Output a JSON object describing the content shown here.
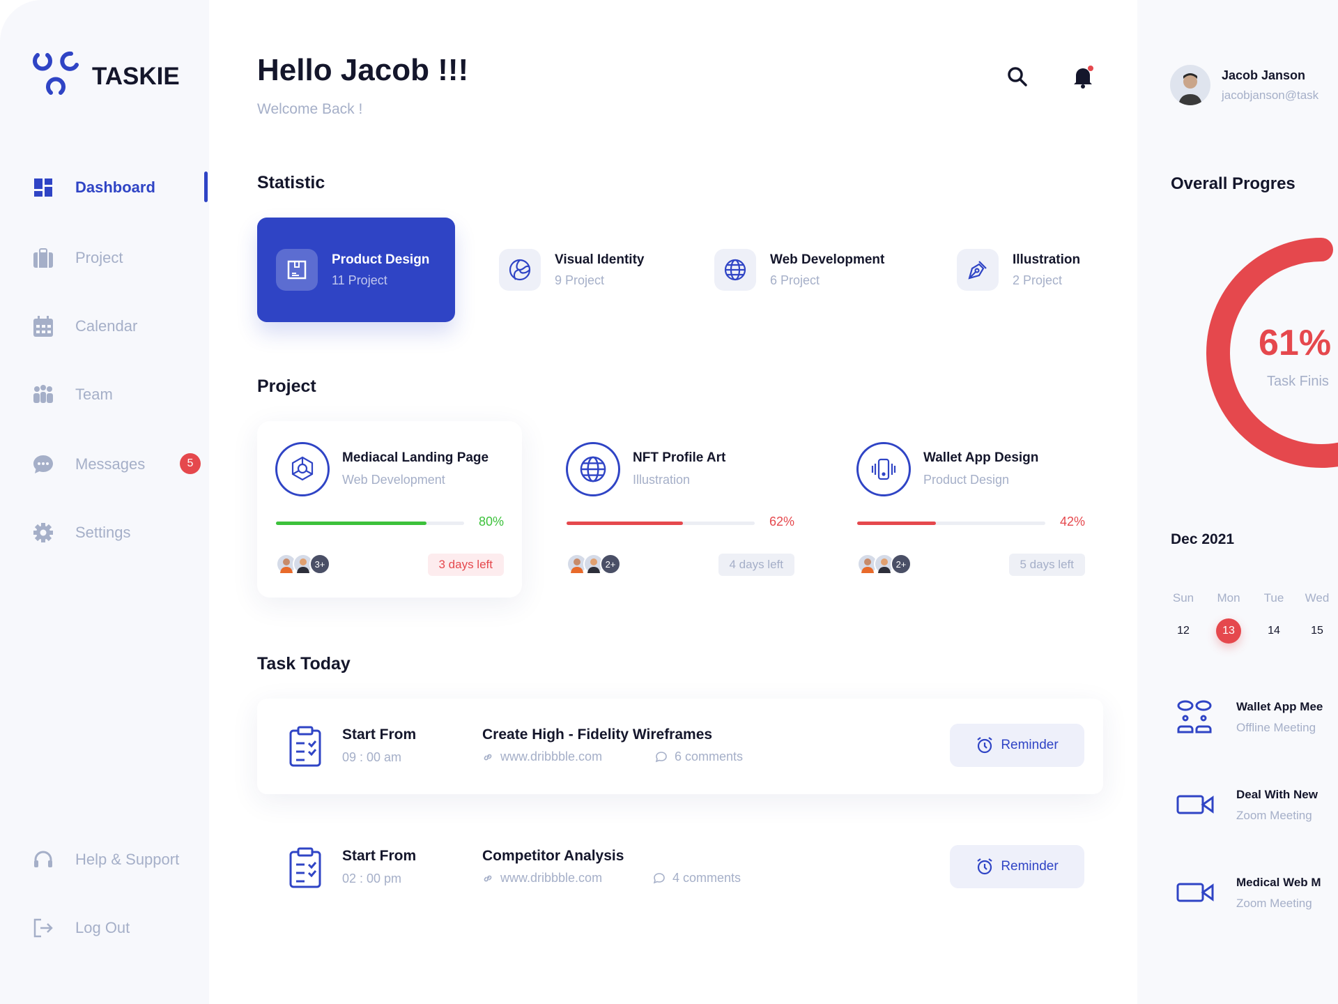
{
  "brand": {
    "name": "TASKIE",
    "color": "#2f44c5"
  },
  "sidebar": {
    "items": [
      {
        "label": "Dashboard",
        "icon": "dashboard-icon",
        "active": true
      },
      {
        "label": "Project",
        "icon": "briefcase-icon"
      },
      {
        "label": "Calendar",
        "icon": "calendar-icon"
      },
      {
        "label": "Team",
        "icon": "team-icon"
      },
      {
        "label": "Messages",
        "icon": "chat-icon",
        "badge": "5"
      },
      {
        "label": "Settings",
        "icon": "gear-icon"
      }
    ],
    "bottom": [
      {
        "label": "Help & Support",
        "icon": "headset-icon"
      },
      {
        "label": "Log Out",
        "icon": "logout-icon"
      }
    ]
  },
  "header": {
    "title": "Hello Jacob !!!",
    "subtitle": "Welcome Back !"
  },
  "statistic": {
    "title": "Statistic",
    "items": [
      {
        "label": "Product Design",
        "count": "11 Project",
        "active": true
      },
      {
        "label": "Visual Identity",
        "count": "9 Project"
      },
      {
        "label": "Web Development",
        "count": "6 Project"
      },
      {
        "label": "Illustration",
        "count": "2 Project"
      }
    ]
  },
  "projects": {
    "title": "Project",
    "items": [
      {
        "name": "Mediacal Landing Page",
        "category": "Web Development",
        "progress": 80,
        "progress_label": "80%",
        "color": "#3cc13b",
        "extra": "3+",
        "due": "3 days left",
        "urgent": true
      },
      {
        "name": "NFT Profile Art",
        "category": "Illustration",
        "progress": 62,
        "progress_label": "62%",
        "color": "#e5484d",
        "extra": "2+",
        "due": "4 days left"
      },
      {
        "name": "Wallet App Design",
        "category": "Product Design",
        "progress": 42,
        "progress_label": "42%",
        "color": "#e5484d",
        "extra": "2+",
        "due": "5 days left"
      }
    ]
  },
  "tasks": {
    "title": "Task Today",
    "items": [
      {
        "start_label": "Start From",
        "time": "09 : 00 am",
        "title": "Create High - Fidelity Wireframes",
        "link": "www.dribbble.com",
        "comments": "6 comments",
        "button": "Reminder"
      },
      {
        "start_label": "Start From",
        "time": "02 : 00 pm",
        "title": "Competitor Analysis",
        "link": "www.dribbble.com",
        "comments": "4 comments",
        "button": "Reminder"
      }
    ]
  },
  "user": {
    "name": "Jacob Janson",
    "email": "jacobjanson@task"
  },
  "progress": {
    "title": "Overall Progres",
    "value": 61,
    "value_label": "61%",
    "caption": "Task Finis",
    "color": "#e5484d"
  },
  "calendar": {
    "month": "Dec 2021",
    "days": [
      {
        "name": "Sun",
        "num": "12"
      },
      {
        "name": "Mon",
        "num": "13",
        "selected": true
      },
      {
        "name": "Tue",
        "num": "14"
      },
      {
        "name": "Wed",
        "num": "15"
      }
    ]
  },
  "events": [
    {
      "title": "Wallet App Mee",
      "type": "Offline Meeting",
      "icon": "meeting-icon"
    },
    {
      "title": "Deal With New",
      "type": "Zoom Meeting",
      "icon": "video-camera-icon"
    },
    {
      "title": "Medical Web M",
      "type": "Zoom Meeting",
      "icon": "video-camera-icon"
    }
  ]
}
